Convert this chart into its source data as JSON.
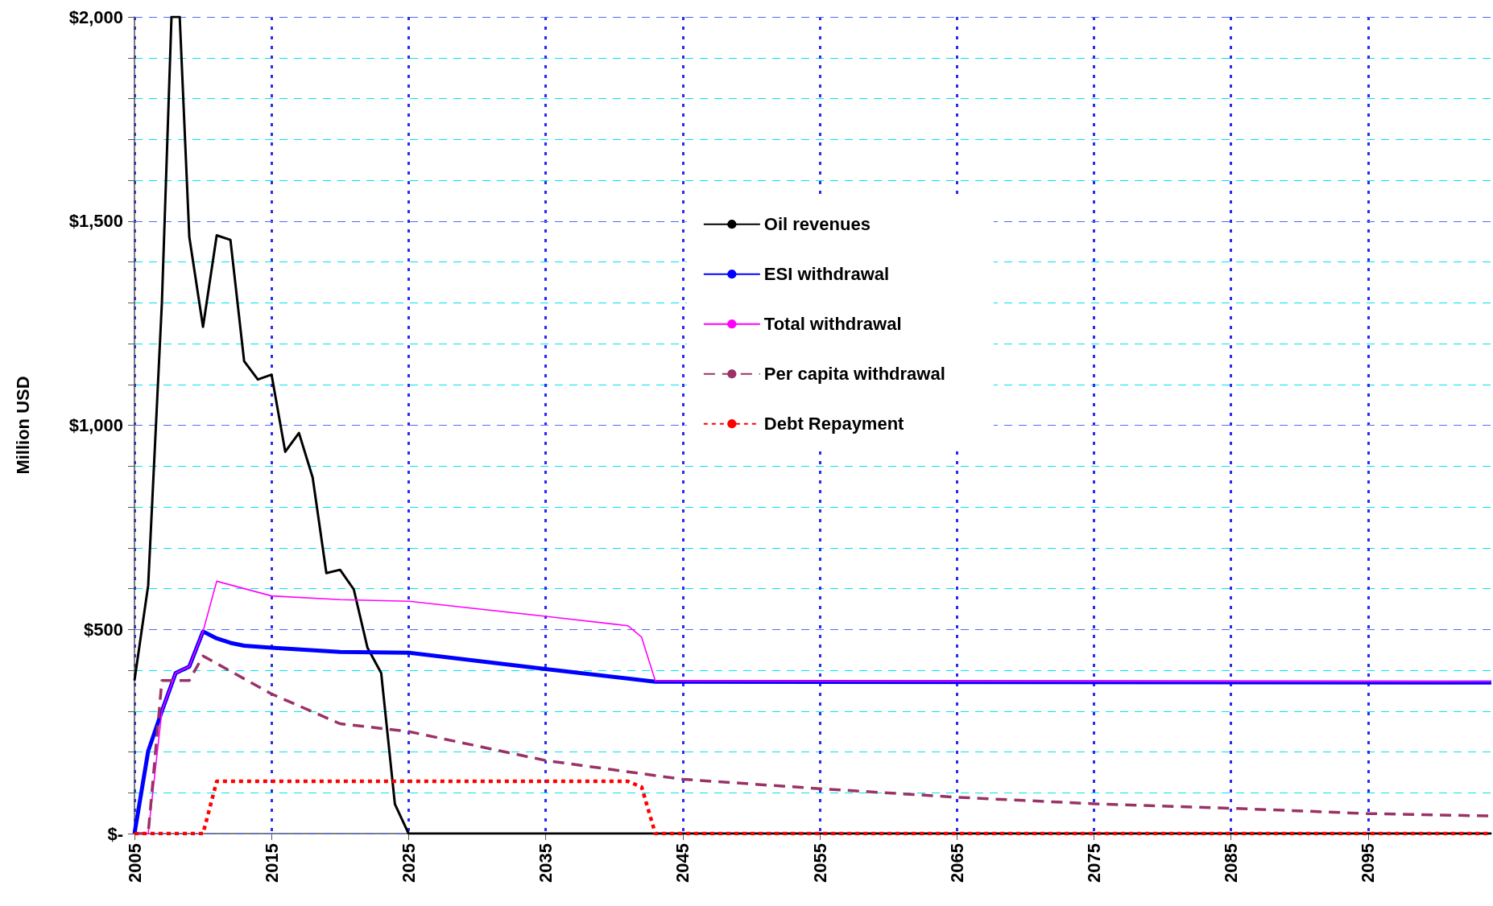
{
  "chart_data": {
    "type": "line",
    "ylabel": "Million USD",
    "xlim": [
      2005,
      2104
    ],
    "xticks": [
      2005,
      2015,
      2025,
      2035,
      2045,
      2055,
      2065,
      2075,
      2085,
      2095
    ],
    "ylim": [
      0,
      2000
    ],
    "yticks": [
      {
        "value": 0,
        "label": "$-"
      },
      {
        "value": 100,
        "label": null
      },
      {
        "value": 200,
        "label": null
      },
      {
        "value": 300,
        "label": null
      },
      {
        "value": 400,
        "label": null
      },
      {
        "value": 500,
        "label": "$500"
      },
      {
        "value": 600,
        "label": null
      },
      {
        "value": 700,
        "label": null
      },
      {
        "value": 800,
        "label": null
      },
      {
        "value": 900,
        "label": null
      },
      {
        "value": 1000,
        "label": "$1,000"
      },
      {
        "value": 1100,
        "label": null
      },
      {
        "value": 1200,
        "label": null
      },
      {
        "value": 1300,
        "label": null
      },
      {
        "value": 1400,
        "label": null
      },
      {
        "value": 1500,
        "label": "$1,500"
      },
      {
        "value": 1600,
        "label": null
      },
      {
        "value": 1700,
        "label": null
      },
      {
        "value": 1800,
        "label": null
      },
      {
        "value": 1900,
        "label": null
      },
      {
        "value": 2000,
        "label": "$2,000"
      }
    ],
    "grid": true,
    "legend": "top",
    "marker": "none",
    "series": [
      {
        "name": "Oil revenues",
        "color": "#000000",
        "line_style": "solid",
        "x": [
          2005,
          2006,
          2007,
          2007.7,
          2008.3,
          2009,
          2010,
          2011,
          2012,
          2013,
          2014,
          2015,
          2016,
          2017,
          2018,
          2019,
          2020,
          2021,
          2022,
          2023,
          2024,
          2025,
          2104
        ],
        "values": [
          375,
          608,
          1300,
          2000,
          2000,
          1461,
          1241,
          1465,
          1454,
          1157,
          1112,
          1124,
          935,
          981,
          872,
          638,
          646,
          598,
          455,
          393,
          72,
          0,
          0
        ]
      },
      {
        "name": "ESI withdrawal",
        "color": "#0000ff",
        "line_style": "solid",
        "x": [
          2005,
          2006,
          2007,
          2008,
          2009,
          2010,
          2011,
          2012,
          2013,
          2015,
          2020,
          2025,
          2035,
          2043,
          2104
        ],
        "values": [
          0,
          202,
          300,
          393,
          409,
          495,
          478,
          467,
          460,
          455,
          445,
          443,
          403,
          372,
          370
        ]
      },
      {
        "name": "Total withdrawal",
        "color": "#ff00ff",
        "line_style": "solid",
        "x": [
          2005,
          2006,
          2007,
          2008,
          2009,
          2010,
          2011,
          2015,
          2020,
          2025,
          2035,
          2041,
          2042,
          2043,
          2104
        ],
        "values": [
          0,
          0,
          300,
          393,
          409,
          495,
          618,
          582,
          573,
          569,
          532,
          509,
          481,
          374,
          372
        ]
      },
      {
        "name": "Per capita withdrawal",
        "color": "#993366",
        "line_style": "dashed",
        "x": [
          2005,
          2006,
          2007,
          2009,
          2010,
          2015,
          2020,
          2025,
          2035,
          2045,
          2055,
          2065,
          2075,
          2085,
          2095,
          2104
        ],
        "values": [
          0,
          0,
          375,
          375,
          435,
          342,
          269,
          250,
          179,
          133,
          110,
          89,
          73,
          62,
          49,
          43
        ]
      },
      {
        "name": "Debt Repayment",
        "color": "#ff0000",
        "line_style": "dotted",
        "x": [
          2005,
          2010,
          2011,
          2041,
          2042,
          2043,
          2104
        ],
        "values": [
          0,
          0,
          128,
          128,
          114,
          0,
          0
        ]
      }
    ]
  }
}
